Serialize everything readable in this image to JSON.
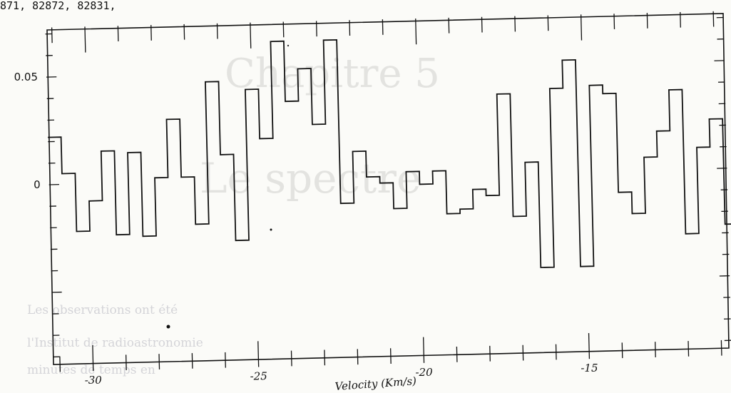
{
  "header_text": "871, 82872, 82831,",
  "background_page": {
    "title_line1": "Chapitre 5",
    "title_line2": "Le spectre",
    "body_lines": [
      "Les observations ont été",
      "l'Institut de radioastronomie",
      "minutes de temps en"
    ]
  },
  "chart_data": {
    "type": "line",
    "style": "step",
    "title": "",
    "xlabel": "Velocity (Km/s)",
    "ylabel": "",
    "xlim": [
      -31.2,
      -10.7
    ],
    "ylim": [
      -0.087,
      0.073
    ],
    "x_major_ticks": [
      -30,
      -25,
      -20,
      -15
    ],
    "x_tick_labels": [
      "-30",
      "-25",
      "-20",
      "-15"
    ],
    "y_major_ticks": [
      0,
      0.05
    ],
    "y_tick_labels": [
      "0",
      "0.05"
    ],
    "grid": false,
    "series": [
      {
        "x": [
          -31.2,
          -30.8,
          -30.4,
          -30.0,
          -29.6,
          -29.2,
          -28.8,
          -28.4,
          -28.0,
          -27.6,
          -27.2,
          -26.8,
          -26.4,
          -26.0,
          -25.6,
          -25.2,
          -24.8,
          -24.4,
          -24.0,
          -23.6,
          -23.2,
          -22.8,
          -22.4,
          -22.0,
          -21.6,
          -21.2,
          -20.8,
          -20.4,
          -20.0,
          -19.6,
          -19.2,
          -18.8,
          -18.4,
          -18.0,
          -17.6,
          -17.2,
          -16.8,
          -16.4,
          -16.0,
          -15.6,
          -15.2,
          -14.8,
          -14.4,
          -14.0,
          -13.6,
          -13.2,
          -12.8,
          -12.4,
          -12.0,
          -11.6,
          -11.2,
          -10.8
        ],
        "y": [
          0.022,
          0.005,
          -0.022,
          -0.008,
          0.015,
          -0.024,
          0.014,
          -0.025,
          0.002,
          0.029,
          0.002,
          -0.02,
          0.046,
          0.012,
          -0.028,
          0.042,
          0.019,
          0.064,
          0.036,
          0.051,
          0.025,
          0.064,
          -0.012,
          0.012,
          0.0,
          -0.003,
          -0.015,
          0.002,
          -0.004,
          0.002,
          -0.018,
          -0.016,
          -0.007,
          -0.01,
          0.037,
          -0.02,
          0.005,
          -0.044,
          0.039,
          0.052,
          -0.044,
          0.04,
          0.036,
          -0.01,
          -0.02,
          0.006,
          0.018,
          0.037,
          -0.03,
          0.01,
          0.023,
          -0.026
        ]
      }
    ]
  }
}
